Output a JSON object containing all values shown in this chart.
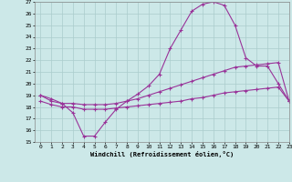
{
  "xlabel": "Windchill (Refroidissement éolien,°C)",
  "xlim": [
    -0.5,
    23
  ],
  "ylim": [
    15,
    27
  ],
  "xticks": [
    0,
    1,
    2,
    3,
    4,
    5,
    6,
    7,
    8,
    9,
    10,
    11,
    12,
    13,
    14,
    15,
    16,
    17,
    18,
    19,
    20,
    21,
    22,
    23
  ],
  "yticks": [
    15,
    16,
    17,
    18,
    19,
    20,
    21,
    22,
    23,
    24,
    25,
    26,
    27
  ],
  "bg_color": "#cce8e8",
  "grid_color": "#aacccc",
  "line_color": "#993399",
  "line1_x": [
    0,
    1,
    2,
    3,
    4,
    5,
    6,
    7,
    8,
    9,
    10,
    11,
    12,
    13,
    14,
    15,
    16,
    17,
    18,
    19,
    20,
    21,
    22,
    23
  ],
  "line1_y": [
    19.0,
    18.7,
    18.3,
    17.5,
    15.5,
    15.5,
    16.7,
    17.8,
    18.5,
    19.1,
    19.8,
    20.8,
    23.0,
    24.6,
    26.2,
    26.8,
    27.0,
    26.7,
    25.0,
    22.2,
    21.5,
    21.5,
    20.0,
    18.5
  ],
  "line2_x": [
    0,
    1,
    2,
    3,
    4,
    5,
    6,
    7,
    8,
    9,
    10,
    11,
    12,
    13,
    14,
    15,
    16,
    17,
    18,
    19,
    20,
    21,
    22,
    23
  ],
  "line2_y": [
    19.0,
    18.5,
    18.3,
    18.3,
    18.2,
    18.2,
    18.2,
    18.3,
    18.5,
    18.7,
    19.0,
    19.3,
    19.6,
    19.9,
    20.2,
    20.5,
    20.8,
    21.1,
    21.4,
    21.5,
    21.6,
    21.7,
    21.8,
    18.5
  ],
  "line3_x": [
    0,
    1,
    2,
    3,
    4,
    5,
    6,
    7,
    8,
    9,
    10,
    11,
    12,
    13,
    14,
    15,
    16,
    17,
    18,
    19,
    20,
    21,
    22,
    23
  ],
  "line3_y": [
    18.5,
    18.2,
    18.0,
    18.0,
    17.8,
    17.8,
    17.8,
    17.9,
    18.0,
    18.1,
    18.2,
    18.3,
    18.4,
    18.5,
    18.7,
    18.8,
    19.0,
    19.2,
    19.3,
    19.4,
    19.5,
    19.6,
    19.7,
    18.5
  ]
}
